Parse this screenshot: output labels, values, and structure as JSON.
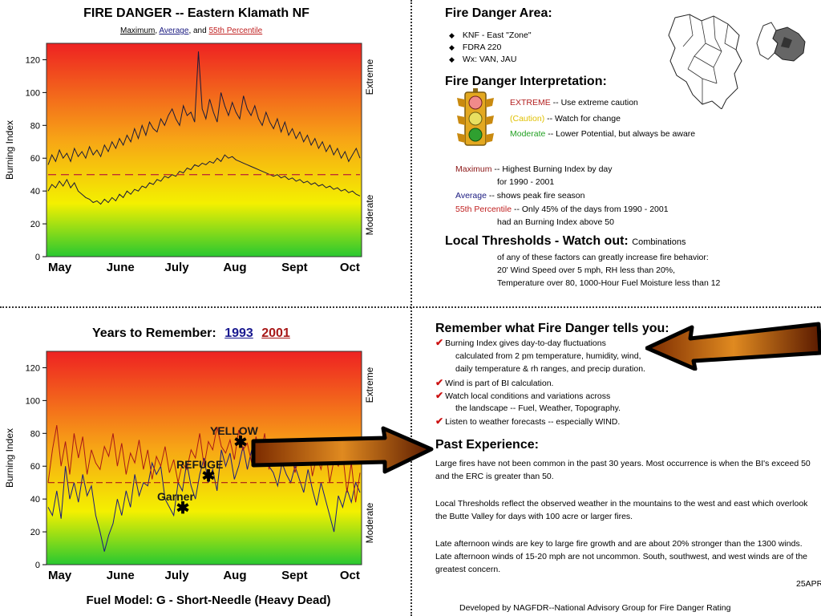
{
  "colors": {
    "extreme": "#b32020",
    "caution": "#e0c000",
    "moderate": "#22a022",
    "maximum_line": "#8b1515",
    "average_line": "#1a1a80",
    "percentile_line": "#c02020",
    "year1993": "#1a1a90",
    "year2001": "#a81818"
  },
  "top_chart": {
    "title": "FIRE DANGER -- Eastern  Klamath NF",
    "subtitle_maximum": "Maximum",
    "subtitle_sep1": ",",
    "subtitle_average": "Average",
    "subtitle_and": ", and",
    "subtitle_percentile": "55th  Percentile",
    "ylabel": "Burning Index",
    "right_top": "Extreme",
    "right_bottom": "Moderate"
  },
  "bottom_chart": {
    "title": "Years to Remember:",
    "year1": "1993",
    "year2": "2001",
    "ylabel": "Burning Index",
    "right_top": "Extreme",
    "right_bottom": "Moderate",
    "fuel_model": "Fuel Model: G - Short-Needle (Heavy Dead)",
    "annotations": [
      "YELLOW",
      "REFUGE",
      "Garner"
    ]
  },
  "chart_data": [
    {
      "type": "line",
      "title": "FIRE DANGER -- Eastern  Klamath NF",
      "ylabel": "Burning Index",
      "ylim": [
        0,
        130
      ],
      "yticks": [
        0,
        20,
        40,
        60,
        80,
        100,
        120
      ],
      "xticks": [
        "May",
        "June",
        "July",
        "Aug",
        "Sept",
        "Oct"
      ],
      "grid": false,
      "series": [
        {
          "name": "Maximum",
          "values": [
            56,
            62,
            58,
            65,
            60,
            63,
            58,
            66,
            61,
            64,
            60,
            67,
            62,
            65,
            61,
            68,
            64,
            70,
            66,
            72,
            68,
            74,
            70,
            78,
            72,
            80,
            74,
            82,
            78,
            76,
            84,
            80,
            86,
            90,
            84,
            80,
            92,
            86,
            88,
            82,
            125,
            90,
            84,
            96,
            88,
            82,
            100,
            92,
            86,
            94,
            88,
            84,
            98,
            90,
            86,
            92,
            84,
            80,
            88,
            82,
            78,
            84,
            76,
            82,
            74,
            78,
            72,
            76,
            70,
            74,
            68,
            72,
            66,
            70,
            64,
            68,
            62,
            66,
            60,
            64,
            58,
            62,
            66,
            60
          ]
        },
        {
          "name": "Average",
          "values": [
            40,
            44,
            42,
            46,
            43,
            47,
            42,
            45,
            40,
            38,
            36,
            35,
            33,
            34,
            32,
            35,
            33,
            36,
            34,
            38,
            36,
            40,
            38,
            41,
            40,
            43,
            42,
            45,
            44,
            47,
            46,
            49,
            48,
            50,
            49,
            52,
            51,
            54,
            53,
            56,
            55,
            57,
            56,
            58,
            57,
            60,
            58,
            62,
            60,
            61,
            59,
            58,
            57,
            56,
            55,
            54,
            53,
            52,
            51,
            50,
            49,
            50,
            48,
            49,
            47,
            48,
            46,
            47,
            45,
            46,
            44,
            45,
            43,
            44,
            42,
            43,
            41,
            42,
            40,
            41,
            39,
            40,
            38,
            37
          ]
        },
        {
          "name": "55th  Percentile",
          "values": [
            50,
            50,
            50,
            50,
            50,
            50,
            50,
            50,
            50,
            50,
            50,
            50,
            50,
            50,
            50,
            50,
            50,
            50,
            50,
            50
          ]
        }
      ]
    },
    {
      "type": "line",
      "title": "Years to Remember:",
      "ylabel": "Burning Index",
      "ylim": [
        0,
        130
      ],
      "yticks": [
        0,
        20,
        40,
        60,
        80,
        100,
        120
      ],
      "xticks": [
        "May",
        "June",
        "July",
        "Aug",
        "Sept",
        "Oct"
      ],
      "grid": false,
      "series": [
        {
          "name": "1993",
          "values": [
            35,
            30,
            45,
            28,
            60,
            40,
            50,
            38,
            55,
            42,
            48,
            30,
            20,
            8,
            18,
            25,
            40,
            30,
            45,
            35,
            55,
            42,
            50,
            48,
            62,
            55,
            60,
            40,
            35,
            30,
            50,
            45,
            62,
            48,
            40,
            55,
            65,
            50,
            58,
            45,
            70,
            60,
            68,
            52,
            60,
            72,
            58,
            70,
            62,
            74,
            66,
            60,
            56,
            48,
            62,
            55,
            50,
            60,
            52,
            44,
            58,
            46,
            36,
            50,
            40,
            30,
            20,
            42,
            35,
            46,
            38,
            50,
            44
          ]
        },
        {
          "name": "2001",
          "values": [
            50,
            70,
            85,
            60,
            75,
            55,
            80,
            65,
            78,
            55,
            70,
            62,
            58,
            72,
            66,
            80,
            60,
            74,
            55,
            68,
            62,
            76,
            58,
            70,
            52,
            66,
            60,
            72,
            56,
            64,
            50,
            62,
            58,
            70,
            65,
            80,
            60,
            75,
            70,
            84,
            72,
            68,
            76,
            64,
            82,
            70,
            74,
            62,
            78,
            66,
            80,
            58,
            72,
            64,
            76,
            60,
            70,
            56,
            68,
            62,
            74,
            54,
            66,
            58,
            72,
            50,
            64,
            60,
            68,
            44,
            62,
            38,
            56
          ]
        },
        {
          "name": "55th  Percentile",
          "values": [
            50,
            50,
            50,
            50,
            50,
            50,
            50,
            50,
            50,
            50,
            50,
            50,
            50,
            50,
            50,
            50,
            50,
            50,
            50,
            50
          ]
        }
      ]
    }
  ],
  "area": {
    "heading": "Fire Danger Area:",
    "bullets": [
      "KNF - East \"Zone\"",
      "FDRA 220",
      "Wx: VAN, JAU"
    ]
  },
  "interpretation": {
    "heading": "Fire Danger Interpretation:",
    "rows": [
      {
        "key": "EXTREME",
        "text": " -- Use extreme caution"
      },
      {
        "key": "(Caution)",
        "text": " -- Watch for change"
      },
      {
        "key": "Moderate",
        "text": " -- Lower Potential, but always be aware"
      }
    ]
  },
  "legend_notes": {
    "maximum_key": "Maximum",
    "maximum_text": "  -- Highest Burning Index by day",
    "maximum_text2": "for 1990 - 2001",
    "average_key": "Average",
    "average_text": " -- shows peak fire season",
    "percentile_key": "55th Percentile",
    "percentile_text": "  -- Only 45% of the days from 1990 - 2001",
    "percentile_text2": "had an Burning Index above 50"
  },
  "thresholds": {
    "heading": "Local Thresholds - Watch out:",
    "heading_suffix": "Combinations",
    "line1": "of any of these factors can greatly increase fire behavior:",
    "line2": "20' Wind Speed over 5 mph, RH  less than 20%,",
    "line3": "Temperature over 80, 1000-Hour Fuel Moisture less than 12"
  },
  "remember": {
    "heading": "Remember what Fire Danger tells you:",
    "items": [
      {
        "line1": "Burning Index gives day-to-day fluctuations",
        "line2": "calculated from 2 pm temperature, humidity, wind,",
        "line3": "daily temperature & rh ranges, and precip duration."
      },
      {
        "line1": "Wind is part of BI calculation."
      },
      {
        "line1": "Watch local conditions and variations across",
        "line2": "the landscape -- Fuel, Weather, Topography."
      },
      {
        "line1": "Listen to weather forecasts -- especially WIND."
      }
    ]
  },
  "past": {
    "heading": "Past Experience:",
    "p1": "Large fires have not been common in the past 30 years.  Most occurrence is when the BI's exceed 50 and the ERC is greater than 50.",
    "p2": "Local Thresholds reflect the observed weather in the mountains to the west and east which overlook the  Butte Valley for days with 100 acre or larger fires.",
    "p3": "Late afternoon winds are key to large fire growth and are about 20% stronger than the 1300 winds.  Late afternoon winds of 15-20 mph are not uncommon.  South, southwest, and west winds are of the greatest concern.",
    "date": "25APR",
    "footer": "Developed by NAGFDR--National Advisory Group for Fire Danger Rating"
  }
}
